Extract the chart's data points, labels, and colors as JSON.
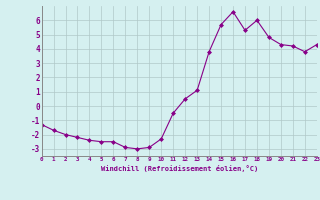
{
  "x": [
    0,
    1,
    2,
    3,
    4,
    5,
    6,
    7,
    8,
    9,
    10,
    11,
    12,
    13,
    14,
    15,
    16,
    17,
    18,
    19,
    20,
    21,
    22,
    23
  ],
  "y": [
    -1.3,
    -1.7,
    -2.0,
    -2.2,
    -2.4,
    -2.5,
    -2.5,
    -2.9,
    -3.0,
    -2.9,
    -2.3,
    -0.5,
    0.5,
    1.1,
    3.8,
    5.7,
    6.6,
    5.3,
    6.0,
    4.8,
    4.3,
    4.2,
    3.8,
    4.3
  ],
  "line_color": "#880088",
  "marker": "D",
  "marker_size": 2.0,
  "bg_color": "#d5f0f0",
  "grid_color": "#b0c8c8",
  "axis_label_color": "#880088",
  "tick_color": "#880088",
  "xlabel": "Windchill (Refroidissement éolien,°C)",
  "xlim": [
    0,
    23
  ],
  "ylim": [
    -3.5,
    7.0
  ],
  "yticks": [
    -3,
    -2,
    -1,
    0,
    1,
    2,
    3,
    4,
    5,
    6
  ],
  "xticks": [
    0,
    1,
    2,
    3,
    4,
    5,
    6,
    7,
    8,
    9,
    10,
    11,
    12,
    13,
    14,
    15,
    16,
    17,
    18,
    19,
    20,
    21,
    22,
    23
  ]
}
